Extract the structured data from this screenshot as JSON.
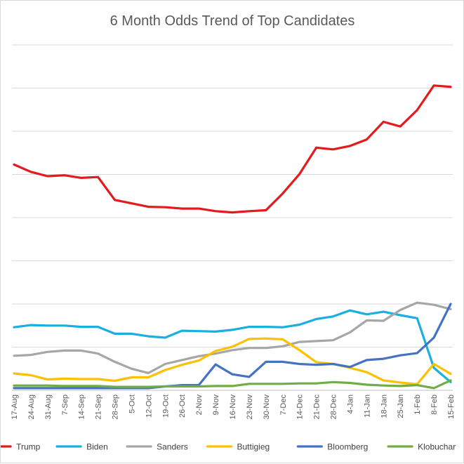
{
  "chart_data": {
    "type": "line",
    "title": "6 Month Odds Trend of Top Candidates",
    "xlabel": "",
    "ylabel": "",
    "y_axis_labels_shown": false,
    "ylim": [
      0,
      80
    ],
    "gridlines": [
      0,
      10,
      20,
      30,
      40,
      50,
      60,
      70,
      80
    ],
    "grid": true,
    "legend_position": "bottom",
    "categories": [
      "17-Aug",
      "24-Aug",
      "31-Aug",
      "7-Sep",
      "14-Sep",
      "21-Sep",
      "28-Sep",
      "5-Oct",
      "12-Oct",
      "19-Oct",
      "26-Oct",
      "2-Nov",
      "9-Nov",
      "16-Nov",
      "23-Nov",
      "30-Nov",
      "7-Dec",
      "14-Dec",
      "21-Dec",
      "28-Dec",
      "4-Jan",
      "11-Jan",
      "18-Jan",
      "25-Jan",
      "1-Feb",
      "8-Feb",
      "15-Feb"
    ],
    "series": [
      {
        "name": "Trump",
        "color": "#e41a1c",
        "values": [
          52.3,
          50.6,
          49.6,
          49.8,
          49.2,
          49.4,
          44.1,
          43.3,
          42.5,
          42.4,
          42.1,
          42.1,
          41.5,
          41.2,
          41.5,
          41.7,
          45.6,
          50.1,
          56.2,
          55.8,
          56.6,
          58.1,
          62.2,
          61.1,
          64.9,
          70.6,
          70.3
        ]
      },
      {
        "name": "Biden",
        "color": "#1baee0",
        "values": [
          14.6,
          15.1,
          15.0,
          15.0,
          14.7,
          14.7,
          13.1,
          13.1,
          12.5,
          12.2,
          13.8,
          13.7,
          13.6,
          14.0,
          14.7,
          14.7,
          14.6,
          15.2,
          16.5,
          17.1,
          18.5,
          17.6,
          18.2,
          17.4,
          16.7,
          5.2,
          1.9
        ]
      },
      {
        "name": "Sanders",
        "color": "#a6a6a6",
        "values": [
          8.0,
          8.2,
          8.9,
          9.2,
          9.2,
          8.5,
          6.6,
          5.0,
          4.0,
          6.1,
          7.0,
          7.9,
          8.5,
          9.3,
          9.8,
          9.8,
          10.2,
          11.2,
          11.4,
          11.6,
          13.4,
          16.2,
          16.1,
          18.6,
          20.3,
          19.8,
          18.8
        ]
      },
      {
        "name": "Buttigieg",
        "color": "#ffc000",
        "values": [
          3.9,
          3.5,
          2.5,
          2.7,
          2.6,
          2.6,
          2.2,
          3.0,
          3.0,
          4.7,
          5.9,
          6.9,
          9.1,
          10.1,
          11.9,
          12.0,
          11.8,
          9.3,
          6.5,
          6.1,
          5.2,
          4.2,
          2.3,
          1.8,
          1.4,
          6.1,
          3.8
        ]
      },
      {
        "name": "Bloomberg",
        "color": "#4472c4",
        "values": [
          0.5,
          0.5,
          0.5,
          0.5,
          0.5,
          0.5,
          0.5,
          0.5,
          0.5,
          0.9,
          1.2,
          1.2,
          6.0,
          3.7,
          3.1,
          6.6,
          6.6,
          6.1,
          5.9,
          6.1,
          5.4,
          7.0,
          7.3,
          8.1,
          8.6,
          12.2,
          20.0
        ]
      },
      {
        "name": "Klobuchar",
        "color": "#70ad47",
        "values": [
          1.1,
          1.1,
          1.1,
          1.0,
          1.0,
          1.0,
          0.8,
          0.8,
          0.8,
          0.9,
          0.9,
          0.9,
          1.0,
          1.0,
          1.5,
          1.5,
          1.5,
          1.6,
          1.6,
          1.9,
          1.7,
          1.3,
          1.1,
          1.0,
          1.2,
          0.5,
          2.3
        ]
      }
    ]
  }
}
